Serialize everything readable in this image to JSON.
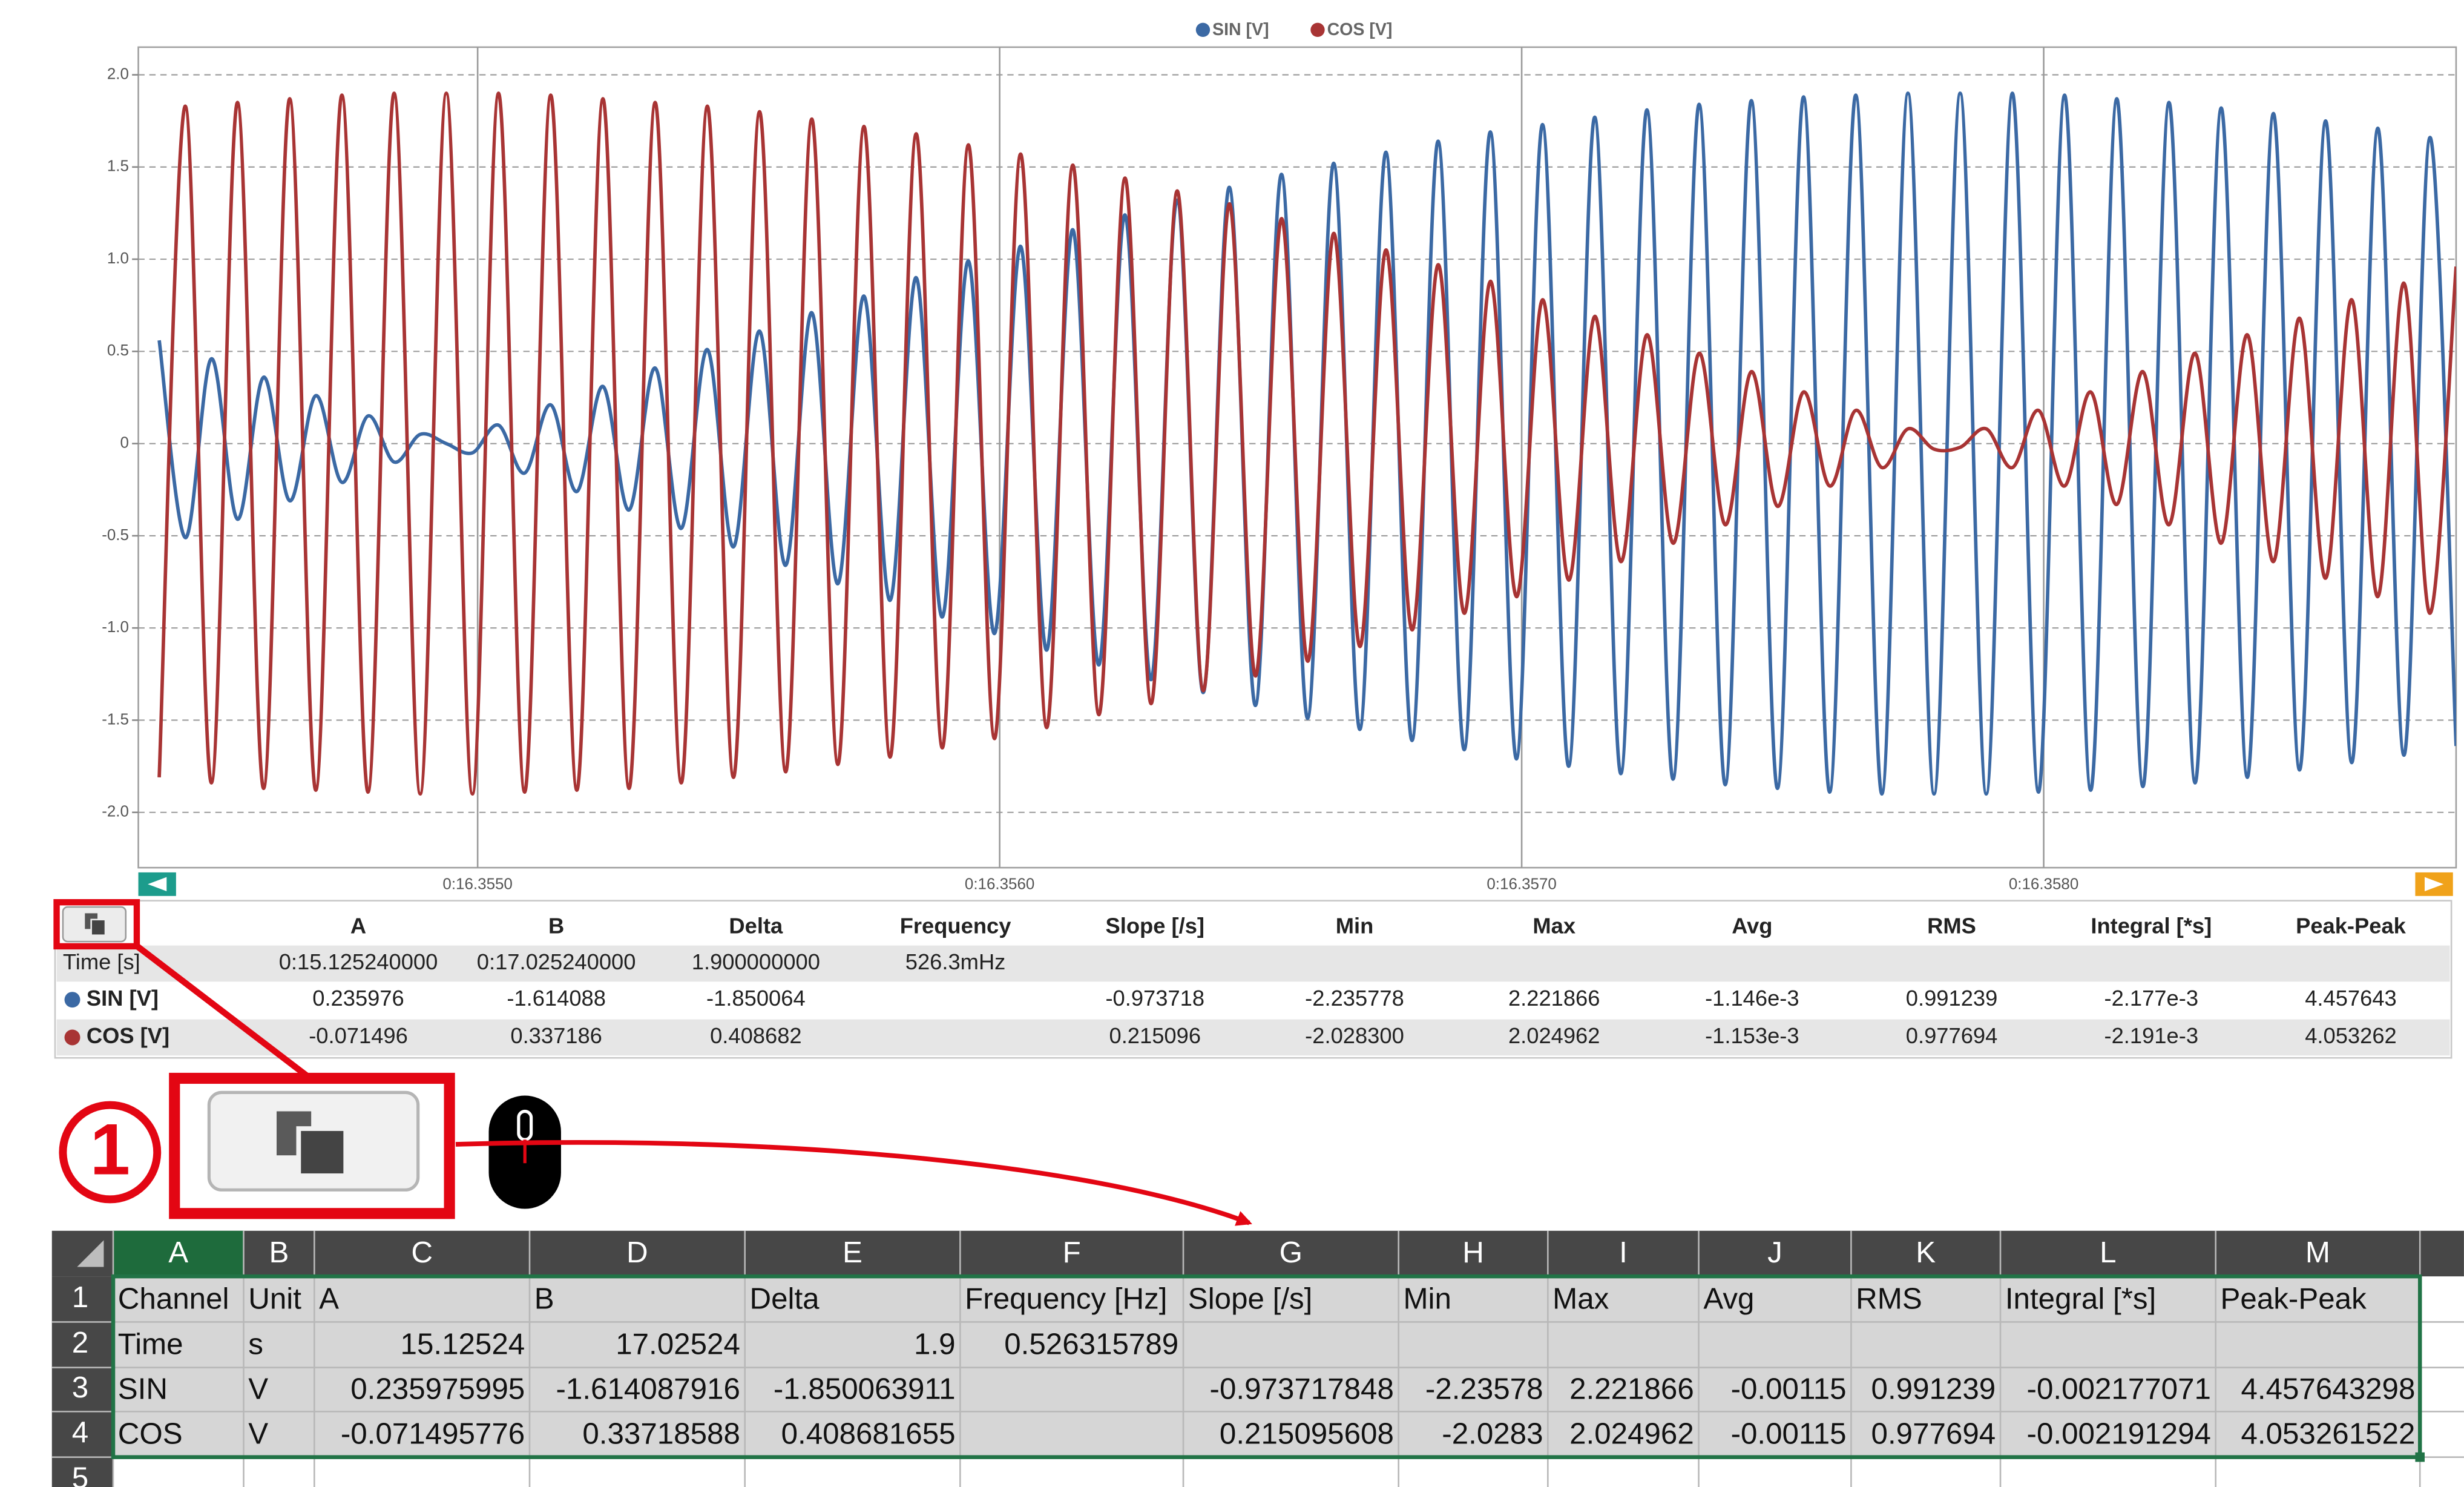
{
  "chart_data": {
    "type": "line",
    "legend": "top",
    "grid": true,
    "x": [
      16.35439,
      16.35444,
      16.35449,
      16.35454,
      16.35459,
      16.35464,
      16.35469,
      16.35474,
      16.35479,
      16.35484,
      16.35489,
      16.35494,
      16.35499,
      16.35504,
      16.35509,
      16.35514,
      16.35519,
      16.35524,
      16.35529,
      16.35534,
      16.35539,
      16.35544,
      16.35549,
      16.35554,
      16.35559,
      16.35564,
      16.35569,
      16.35574,
      16.35579,
      16.35584,
      16.35589,
      16.35594,
      16.35599,
      16.35604,
      16.35609,
      16.35614,
      16.35619,
      16.35624,
      16.35629,
      16.35634,
      16.35639,
      16.35644,
      16.35649,
      16.35654,
      16.35659,
      16.35664,
      16.35669,
      16.35674,
      16.35679,
      16.35684,
      16.35689,
      16.35694,
      16.35699,
      16.35704,
      16.35709,
      16.35714,
      16.35719,
      16.35724,
      16.35729,
      16.35734,
      16.35739,
      16.35744,
      16.35749,
      16.35754,
      16.35759,
      16.35764,
      16.35769,
      16.35774,
      16.35779,
      16.35784,
      16.35789,
      16.35794,
      16.35799,
      16.35804,
      16.35809,
      16.35814,
      16.35819,
      16.35824,
      16.35829,
      16.35834,
      16.35839,
      16.35844,
      16.35849,
      16.35854,
      16.35859,
      16.35864,
      16.35869,
      16.35874,
      16.35879
    ],
    "series": [
      {
        "name": "SIN [V]",
        "color": "#3b69a4",
        "values": [
          0.56,
          -0.51,
          0.46,
          -0.41,
          0.36,
          -0.31,
          0.26,
          -0.21,
          0.15,
          -0.1,
          0.05,
          0.0,
          -0.05,
          0.1,
          -0.16,
          0.21,
          -0.26,
          0.31,
          -0.36,
          0.41,
          -0.46,
          0.51,
          -0.56,
          0.61,
          -0.66,
          0.71,
          -0.76,
          0.8,
          -0.85,
          0.9,
          -0.94,
          0.99,
          -1.03,
          1.07,
          -1.12,
          1.16,
          -1.2,
          1.24,
          -1.28,
          1.32,
          -1.35,
          1.39,
          -1.42,
          1.46,
          -1.49,
          1.52,
          -1.55,
          1.58,
          -1.61,
          1.64,
          -1.66,
          1.69,
          -1.71,
          1.73,
          -1.75,
          1.77,
          -1.79,
          1.81,
          -1.82,
          1.84,
          -1.85,
          1.86,
          -1.87,
          1.88,
          -1.89,
          1.89,
          -1.9,
          1.9,
          -1.9,
          1.9,
          -1.9,
          1.9,
          -1.89,
          1.89,
          -1.88,
          1.87,
          -1.86,
          1.85,
          -1.84,
          1.82,
          -1.81,
          1.79,
          -1.77,
          1.75,
          -1.73,
          1.71,
          -1.69,
          1.66,
          -1.64
        ]
      },
      {
        "name": "COS [V]",
        "color": "#a83434",
        "values": [
          -1.81,
          1.83,
          -1.84,
          1.85,
          -1.87,
          1.87,
          -1.88,
          1.89,
          -1.89,
          1.9,
          -1.9,
          1.9,
          -1.9,
          1.9,
          -1.89,
          1.89,
          -1.88,
          1.87,
          -1.87,
          1.85,
          -1.84,
          1.83,
          -1.81,
          1.8,
          -1.78,
          1.76,
          -1.74,
          1.72,
          -1.7,
          1.68,
          -1.65,
          1.62,
          -1.6,
          1.57,
          -1.54,
          1.51,
          -1.47,
          1.44,
          -1.41,
          1.37,
          -1.34,
          1.3,
          -1.26,
          1.22,
          -1.18,
          1.14,
          -1.1,
          1.05,
          -1.01,
          0.97,
          -0.92,
          0.88,
          -0.83,
          0.78,
          -0.74,
          0.69,
          -0.64,
          0.59,
          -0.54,
          0.49,
          -0.44,
          0.39,
          -0.34,
          0.28,
          -0.23,
          0.18,
          -0.13,
          0.08,
          -0.03,
          -0.02,
          0.08,
          -0.13,
          0.18,
          -0.23,
          0.28,
          -0.33,
          0.39,
          -0.44,
          0.49,
          -0.54,
          0.59,
          -0.64,
          0.68,
          -0.73,
          0.78,
          -0.83,
          0.87,
          -0.92,
          0.96
        ]
      }
    ],
    "xlim": [
      16.35435,
      16.35879
    ],
    "xticks": [
      {
        "value": 16.355,
        "label": "0:16.3550"
      },
      {
        "value": 16.356,
        "label": "0:16.3560"
      },
      {
        "value": 16.357,
        "label": "0:16.3570"
      },
      {
        "value": 16.358,
        "label": "0:16.3580"
      }
    ],
    "ylim": [
      -2.3,
      2.15
    ],
    "yticks": [
      {
        "value": 2,
        "label": "2.0"
      },
      1.5,
      {
        "value": 1,
        "label": "1.0"
      },
      0.5,
      0,
      -0.5,
      {
        "value": -1,
        "label": "-1.0"
      },
      -1.5,
      {
        "value": -2,
        "label": "-2.0"
      }
    ]
  },
  "cursor_table": {
    "header": [
      "A",
      "B",
      "Delta",
      "Frequency",
      "Slope [/s]",
      "Min",
      "Max",
      "Avg",
      "RMS",
      "Integral [*s]",
      "Peak-Peak"
    ],
    "rows": [
      {
        "label": "Time [s]",
        "values": [
          "0:15.125240000",
          "0:17.025240000",
          "1.900000000",
          "526.3mHz",
          null,
          null,
          null,
          null,
          null,
          null,
          null
        ]
      },
      {
        "label": "SIN [V]",
        "values": [
          "0.235976",
          "-1.614088",
          "-1.850064",
          null,
          "-0.973718",
          "-2.235778",
          "2.221866",
          "-1.146e-3",
          "0.991239",
          "-2.177e-3",
          "4.457643"
        ]
      },
      {
        "label": "COS [V]",
        "values": [
          "-0.071496",
          "0.337186",
          "0.408682",
          null,
          "0.215096",
          "-2.028300",
          "2.024962",
          "-1.153e-3",
          "0.977694",
          "-2.191e-3",
          "4.053262"
        ]
      }
    ]
  },
  "annotation": {
    "step": "1"
  },
  "spreadsheet": {
    "column_headers": [
      "A",
      "B",
      "C",
      "D",
      "E",
      "F",
      "G",
      "H",
      "I",
      "J",
      "K",
      "L",
      "M"
    ],
    "row_headers": [
      "1",
      "2",
      "3",
      "4",
      "5"
    ],
    "rows": [
      [
        "Channel",
        "Unit",
        "A",
        "B",
        "Delta",
        "Frequency [Hz]",
        "Slope [/s]",
        "Min",
        "Max",
        "Avg",
        "RMS",
        "Integral [*s]",
        "Peak-Peak"
      ],
      [
        "Time",
        "s",
        "15.12524",
        "17.02524",
        "1.9",
        "0.526315789",
        null,
        null,
        null,
        null,
        null,
        null,
        null
      ],
      [
        "SIN",
        "V",
        "0.235975995",
        "-1.614087916",
        "-1.850063911",
        null,
        "-0.973717848",
        "-2.23578",
        "2.221866",
        "-0.00115",
        "0.991239",
        "-0.002177071",
        "4.457643298"
      ],
      [
        "COS",
        "V",
        "-0.071495776",
        "0.33718588",
        "0.408681655",
        null,
        "0.215095608",
        "-2.0283",
        "2.024962",
        "-0.00115",
        "0.977694",
        "-0.002191294",
        "4.053261522"
      ]
    ]
  }
}
